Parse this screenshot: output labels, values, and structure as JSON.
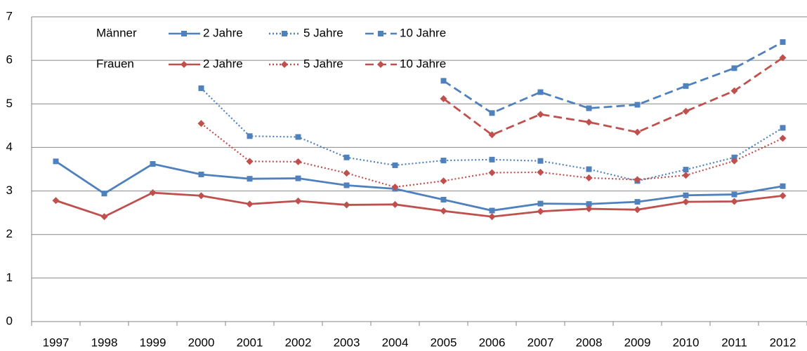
{
  "chart_data": {
    "type": "line",
    "categories": [
      "1997",
      "1998",
      "1999",
      "2000",
      "2001",
      "2002",
      "2003",
      "2004",
      "2005",
      "2006",
      "2007",
      "2008",
      "2009",
      "2010",
      "2011",
      "2012"
    ],
    "ylim": [
      0,
      7
    ],
    "yticks": [
      0,
      1,
      2,
      3,
      4,
      5,
      6,
      7
    ],
    "grid": true,
    "series_groups": [
      {
        "name": "Männer",
        "series": [
          {
            "name": "2 Jahre",
            "color": "#4f81bd",
            "dash": "solid",
            "marker": "square",
            "values": [
              3.68,
              2.94,
              3.62,
              3.38,
              3.28,
              3.29,
              3.13,
              3.05,
              2.8,
              2.55,
              2.71,
              2.7,
              2.75,
              2.9,
              2.92,
              3.11
            ]
          },
          {
            "name": "5 Jahre",
            "color": "#4f81bd",
            "dash": "dotted",
            "marker": "square",
            "values": [
              null,
              null,
              null,
              5.36,
              4.26,
              4.24,
              3.77,
              3.59,
              3.7,
              3.72,
              3.69,
              3.5,
              3.23,
              3.49,
              3.77,
              4.45
            ]
          },
          {
            "name": "10 Jahre",
            "color": "#4f81bd",
            "dash": "dashed",
            "marker": "square",
            "values": [
              null,
              null,
              null,
              null,
              null,
              null,
              null,
              null,
              5.53,
              4.79,
              5.27,
              4.9,
              4.98,
              5.41,
              5.82,
              6.42
            ]
          }
        ]
      },
      {
        "name": "Frauen",
        "series": [
          {
            "name": "2 Jahre",
            "color": "#c0504d",
            "dash": "solid",
            "marker": "diamond",
            "values": [
              2.78,
              2.41,
              2.96,
              2.89,
              2.7,
              2.77,
              2.68,
              2.69,
              2.54,
              2.41,
              2.53,
              2.59,
              2.57,
              2.75,
              2.76,
              2.89
            ]
          },
          {
            "name": "5 Jahre",
            "color": "#c0504d",
            "dash": "dotted",
            "marker": "diamond",
            "values": [
              null,
              null,
              null,
              4.55,
              3.68,
              3.67,
              3.41,
              3.09,
              3.23,
              3.42,
              3.43,
              3.3,
              3.26,
              3.36,
              3.69,
              4.21
            ]
          },
          {
            "name": "10 Jahre",
            "color": "#c0504d",
            "dash": "dashed",
            "marker": "diamond",
            "values": [
              null,
              null,
              null,
              null,
              null,
              null,
              null,
              null,
              5.12,
              4.29,
              4.76,
              4.58,
              4.35,
              4.83,
              5.3,
              6.06
            ]
          }
        ]
      }
    ]
  }
}
